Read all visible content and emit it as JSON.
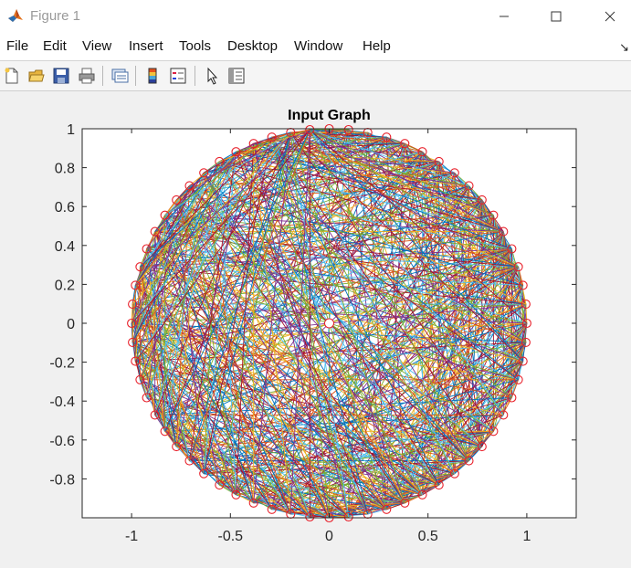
{
  "window": {
    "title": "Figure 1"
  },
  "menu": {
    "items": [
      "File",
      "Edit",
      "View",
      "Insert",
      "Tools",
      "Desktop",
      "Window",
      "Help"
    ]
  },
  "toolbar": {
    "buttons": [
      "new-figure-icon",
      "open-file-icon",
      "save-icon",
      "print-icon",
      "link-plot-icon",
      "insert-colorbar-icon",
      "insert-legend-icon",
      "edit-plot-icon",
      "property-inspector-icon"
    ]
  },
  "colors": {
    "edges": [
      "#0072BD",
      "#D95319",
      "#EDB120",
      "#7E2F8E",
      "#77AC30",
      "#4DBEEE",
      "#A2142F"
    ],
    "nodes": "#E8202A"
  },
  "chart_data": {
    "type": "network",
    "title": "Input Graph",
    "xlim": [
      -1.25,
      1.25
    ],
    "ylim": [
      -1,
      1
    ],
    "xticks": [
      "-1",
      "-0.5",
      "0",
      "0.5",
      "1"
    ],
    "yticks": [
      "1",
      "0.8",
      "0.6",
      "0.4",
      "0.2",
      "0",
      "-0.2",
      "-0.4",
      "-0.6",
      "-0.8"
    ],
    "layout": "circle",
    "node_count": 64,
    "circle_center": [
      0,
      0
    ],
    "circle_radius": 1,
    "box": "on",
    "grid": "off"
  }
}
